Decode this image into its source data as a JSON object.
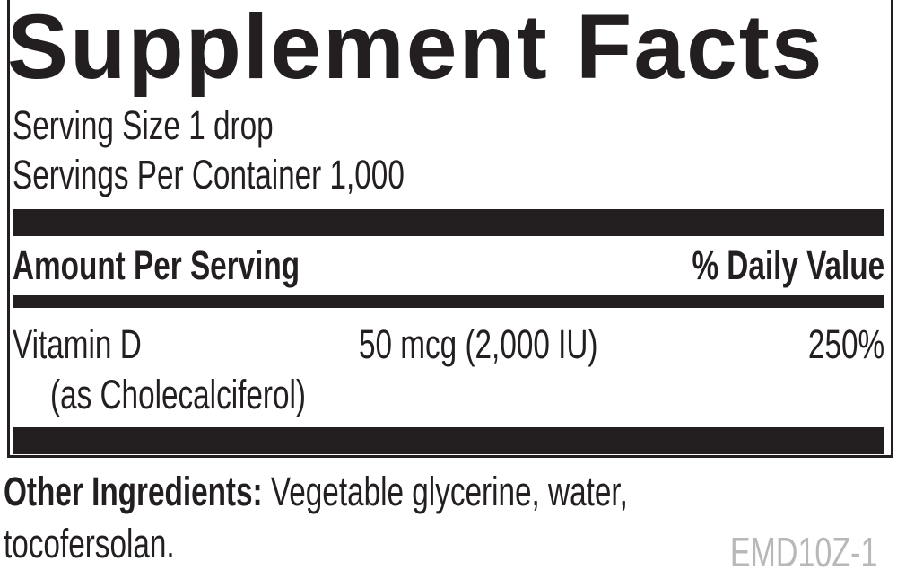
{
  "title": "Supplement Facts",
  "serving_size": "Serving Size 1 drop",
  "servings_per_container": "Servings Per Container 1,000",
  "header": {
    "amount_per_serving": "Amount Per Serving",
    "daily_value": "% Daily Value"
  },
  "nutrients": [
    {
      "name": "Vitamin D",
      "source": "(as Cholecalciferol)",
      "amount": "50 mcg (2,000 IU)",
      "daily_value": "250%"
    }
  ],
  "other_ingredients": {
    "label": "Other Ingredients:",
    "text_line1": "Vegetable glycerine, water,",
    "text_line2": "tocofersolan."
  },
  "product_code": "EMD10Z-1",
  "colors": {
    "ink": "#231f20",
    "code_gray": "#b8b8b8"
  }
}
